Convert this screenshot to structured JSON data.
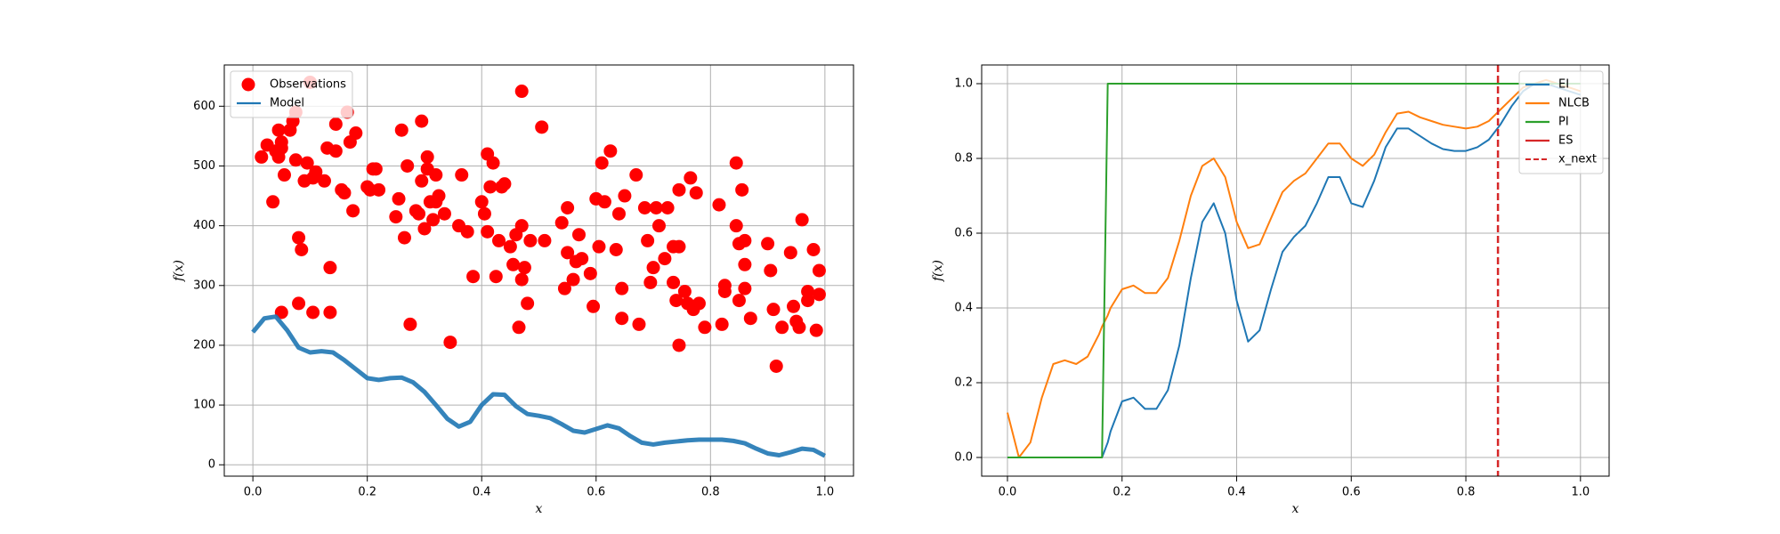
{
  "chart_data": [
    {
      "type": "scatter",
      "xlabel": "x",
      "ylabel": "f(x)",
      "grid": true,
      "legend": "upper left",
      "xlim": [
        -0.05,
        1.05
      ],
      "ylim": [
        -19,
        669
      ],
      "xticks": [
        {
          "value": 0,
          "label": "0.0"
        },
        0.2,
        0.4,
        0.6,
        0.8,
        {
          "value": 1,
          "label": "1.0"
        }
      ],
      "yticks": [
        0,
        100,
        200,
        300,
        400,
        500,
        600
      ],
      "series": [
        {
          "name": "Observations",
          "kind": "scatter",
          "color": "#ff0000",
          "x": [
            0.015,
            0.025,
            0.035,
            0.04,
            0.045,
            0.045,
            0.05,
            0.05,
            0.055,
            0.05,
            0.065,
            0.07,
            0.075,
            0.075,
            0.08,
            0.08,
            0.085,
            0.09,
            0.095,
            0.1,
            0.105,
            0.105,
            0.11,
            0.125,
            0.13,
            0.135,
            0.135,
            0.145,
            0.145,
            0.155,
            0.16,
            0.165,
            0.17,
            0.175,
            0.18,
            0.2,
            0.205,
            0.21,
            0.215,
            0.22,
            0.25,
            0.255,
            0.26,
            0.265,
            0.27,
            0.275,
            0.285,
            0.29,
            0.295,
            0.295,
            0.3,
            0.305,
            0.305,
            0.31,
            0.315,
            0.32,
            0.32,
            0.325,
            0.335,
            0.345,
            0.36,
            0.365,
            0.375,
            0.385,
            0.4,
            0.405,
            0.41,
            0.41,
            0.415,
            0.42,
            0.425,
            0.43,
            0.435,
            0.44,
            0.45,
            0.455,
            0.46,
            0.465,
            0.47,
            0.47,
            0.47,
            0.475,
            0.48,
            0.485,
            0.505,
            0.51,
            0.54,
            0.545,
            0.55,
            0.55,
            0.56,
            0.565,
            0.57,
            0.575,
            0.59,
            0.595,
            0.6,
            0.605,
            0.61,
            0.615,
            0.625,
            0.635,
            0.64,
            0.645,
            0.645,
            0.65,
            0.67,
            0.675,
            0.685,
            0.69,
            0.695,
            0.7,
            0.705,
            0.71,
            0.72,
            0.725,
            0.735,
            0.735,
            0.74,
            0.745,
            0.745,
            0.745,
            0.755,
            0.76,
            0.765,
            0.77,
            0.775,
            0.78,
            0.79,
            0.815,
            0.82,
            0.825,
            0.825,
            0.845,
            0.845,
            0.85,
            0.85,
            0.855,
            0.86,
            0.86,
            0.86,
            0.87,
            0.9,
            0.905,
            0.91,
            0.915,
            0.925,
            0.94,
            0.945,
            0.95,
            0.955,
            0.96,
            0.97,
            0.97,
            0.98,
            0.985,
            0.99,
            0.99
          ],
          "values": [
            515,
            535,
            440,
            525,
            560,
            515,
            540,
            530,
            485,
            255,
            560,
            575,
            590,
            510,
            380,
            270,
            360,
            475,
            505,
            640,
            255,
            480,
            490,
            475,
            530,
            330,
            255,
            525,
            570,
            460,
            455,
            590,
            540,
            425,
            555,
            465,
            460,
            495,
            495,
            460,
            415,
            445,
            560,
            380,
            500,
            235,
            425,
            420,
            575,
            475,
            395,
            515,
            495,
            440,
            410,
            485,
            440,
            450,
            420,
            205,
            400,
            485,
            390,
            315,
            440,
            420,
            390,
            520,
            465,
            505,
            315,
            375,
            465,
            470,
            365,
            335,
            385,
            230,
            400,
            625,
            310,
            330,
            270,
            375,
            565,
            375,
            405,
            295,
            430,
            355,
            310,
            340,
            385,
            345,
            320,
            265,
            445,
            365,
            505,
            440,
            525,
            360,
            420,
            295,
            245,
            450,
            485,
            235,
            430,
            375,
            305,
            330,
            430,
            400,
            345,
            430,
            305,
            365,
            275,
            200,
            460,
            365,
            290,
            270,
            480,
            260,
            455,
            270,
            230,
            435,
            235,
            290,
            300,
            400,
            505,
            370,
            275,
            460,
            295,
            335,
            375,
            245,
            370,
            325,
            260,
            165,
            230,
            355,
            265,
            240,
            230,
            410,
            290,
            275,
            360,
            225,
            325,
            285
          ]
        },
        {
          "name": "Model",
          "kind": "line",
          "color": "#1f77b4",
          "x": [
            0,
            0.02,
            0.04,
            0.06,
            0.08,
            0.1,
            0.12,
            0.14,
            0.16,
            0.18,
            0.2,
            0.22,
            0.24,
            0.26,
            0.28,
            0.3,
            0.32,
            0.34,
            0.36,
            0.38,
            0.4,
            0.42,
            0.44,
            0.46,
            0.48,
            0.5,
            0.52,
            0.54,
            0.56,
            0.58,
            0.6,
            0.62,
            0.64,
            0.66,
            0.68,
            0.7,
            0.72,
            0.74,
            0.76,
            0.78,
            0.8,
            0.82,
            0.84,
            0.86,
            0.88,
            0.9,
            0.92,
            0.94,
            0.96,
            0.98,
            1
          ],
          "values": [
            222,
            245,
            248,
            225,
            196,
            188,
            190,
            188,
            175,
            160,
            145,
            142,
            145,
            146,
            138,
            122,
            100,
            77,
            64,
            72,
            100,
            118,
            117,
            98,
            85,
            82,
            78,
            68,
            57,
            54,
            60,
            66,
            61,
            48,
            37,
            34,
            37,
            39,
            41,
            42,
            42,
            42,
            40,
            36,
            27,
            19,
            16,
            21,
            27,
            25,
            15
          ]
        }
      ]
    },
    {
      "type": "line",
      "xlabel": "x",
      "ylabel": "f(x)",
      "grid": true,
      "legend": "upper right",
      "xlim": [
        -0.045,
        1.05
      ],
      "ylim": [
        -0.05,
        1.05
      ],
      "xticks": [
        {
          "value": 0,
          "label": "0.0"
        },
        0.2,
        0.4,
        0.6,
        0.8,
        {
          "value": 1,
          "label": "1.0"
        }
      ],
      "yticks": [
        {
          "value": 0,
          "label": "0.0"
        },
        0.2,
        0.4,
        0.6,
        0.8,
        {
          "value": 1,
          "label": "1.0"
        }
      ],
      "x": [
        0,
        0.02,
        0.04,
        0.06,
        0.08,
        0.1,
        0.12,
        0.14,
        0.16,
        0.165,
        0.175,
        0.18,
        0.2,
        0.22,
        0.24,
        0.26,
        0.28,
        0.3,
        0.32,
        0.34,
        0.36,
        0.38,
        0.4,
        0.42,
        0.44,
        0.46,
        0.48,
        0.5,
        0.52,
        0.54,
        0.56,
        0.58,
        0.6,
        0.62,
        0.64,
        0.66,
        0.68,
        0.7,
        0.72,
        0.74,
        0.76,
        0.78,
        0.8,
        0.82,
        0.84,
        0.86,
        0.88,
        0.9,
        0.92,
        0.94,
        0.96,
        0.98,
        1
      ],
      "series": [
        {
          "name": "EI",
          "color": "#1f77b4",
          "values": [
            0,
            0,
            0,
            0,
            0,
            0,
            0,
            0,
            0,
            0,
            0.04,
            0.07,
            0.15,
            0.16,
            0.13,
            0.13,
            0.18,
            0.3,
            0.48,
            0.63,
            0.68,
            0.6,
            0.42,
            0.31,
            0.34,
            0.45,
            0.55,
            0.59,
            0.62,
            0.68,
            0.75,
            0.75,
            0.68,
            0.67,
            0.74,
            0.83,
            0.88,
            0.88,
            0.86,
            0.84,
            0.825,
            0.82,
            0.82,
            0.83,
            0.85,
            0.89,
            0.94,
            0.98,
            1.0,
            1.0,
            0.99,
            0.98,
            0.97
          ]
        },
        {
          "name": "NLCB",
          "color": "#ff7f0e",
          "values": [
            0.12,
            0.0,
            0.04,
            0.16,
            0.25,
            0.26,
            0.25,
            0.27,
            0.33,
            0.35,
            0.38,
            0.4,
            0.45,
            0.46,
            0.44,
            0.44,
            0.48,
            0.58,
            0.7,
            0.78,
            0.8,
            0.75,
            0.63,
            0.56,
            0.57,
            0.64,
            0.71,
            0.74,
            0.76,
            0.8,
            0.84,
            0.84,
            0.8,
            0.78,
            0.81,
            0.87,
            0.92,
            0.925,
            0.91,
            0.9,
            0.89,
            0.885,
            0.88,
            0.885,
            0.9,
            0.93,
            0.96,
            0.99,
            1.0,
            1.01,
            1.0,
            0.99,
            0.98
          ]
        },
        {
          "name": "PI",
          "color": "#2ca02c",
          "values": [
            0,
            0,
            0,
            0,
            0,
            0,
            0,
            0,
            0,
            0,
            1,
            1,
            1,
            1,
            1,
            1,
            1,
            1,
            1,
            1,
            1,
            1,
            1,
            1,
            1,
            1,
            1,
            1,
            1,
            1,
            1,
            1,
            1,
            1,
            1,
            1,
            1,
            1,
            1,
            1,
            1,
            1,
            1,
            1,
            1,
            1,
            1,
            1,
            1,
            1,
            1,
            1,
            1
          ]
        },
        {
          "name": "ES",
          "color": "#d62728",
          "values": [
            null,
            null,
            null,
            null,
            null,
            null,
            null,
            null,
            null,
            null,
            null,
            null,
            null,
            null,
            null,
            null,
            null,
            null,
            null,
            null,
            null,
            null,
            null,
            null,
            null,
            null,
            null,
            null,
            null,
            null,
            null,
            null,
            null,
            null,
            null,
            null,
            null,
            null,
            null,
            null,
            null,
            null,
            null,
            null,
            null,
            null,
            null,
            null,
            null,
            null,
            null,
            null,
            null
          ]
        }
      ],
      "vlines": [
        {
          "name": "x_next",
          "color": "#d62728",
          "x": 0.856
        }
      ]
    }
  ]
}
